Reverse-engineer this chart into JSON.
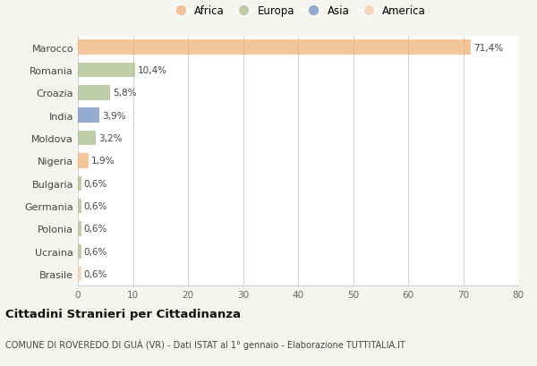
{
  "countries": [
    "Marocco",
    "Romania",
    "Croazia",
    "India",
    "Moldova",
    "Nigeria",
    "Bulgaria",
    "Germania",
    "Polonia",
    "Ucraina",
    "Brasile"
  ],
  "values": [
    71.4,
    10.4,
    5.8,
    3.9,
    3.2,
    1.9,
    0.6,
    0.6,
    0.6,
    0.6,
    0.6
  ],
  "labels": [
    "71,4%",
    "10,4%",
    "5,8%",
    "3,9%",
    "3,2%",
    "1,9%",
    "0,6%",
    "0,6%",
    "0,6%",
    "0,6%",
    "0,6%"
  ],
  "colors": [
    "#F0B27A",
    "#ABBE8B",
    "#ABBE8B",
    "#7090C0",
    "#ABBE8B",
    "#F0B27A",
    "#ABBE8B",
    "#ABBE8B",
    "#ABBE8B",
    "#ABBE8B",
    "#F5CBA7"
  ],
  "legend_labels": [
    "Africa",
    "Europa",
    "Asia",
    "America"
  ],
  "legend_colors": [
    "#F0B27A",
    "#ABBE8B",
    "#7090C0",
    "#F5CBA7"
  ],
  "title": "Cittadini Stranieri per Cittadinanza",
  "subtitle": "COMUNE DI ROVEREDO DI GUÀ (VR) - Dati ISTAT al 1° gennaio - Elaborazione TUTTITALIA.IT",
  "xlim": [
    0,
    80
  ],
  "xticks": [
    0,
    10,
    20,
    30,
    40,
    50,
    60,
    70,
    80
  ],
  "background_color": "#f5f5f0",
  "bar_background": "#ffffff",
  "bar_alpha": 0.75
}
